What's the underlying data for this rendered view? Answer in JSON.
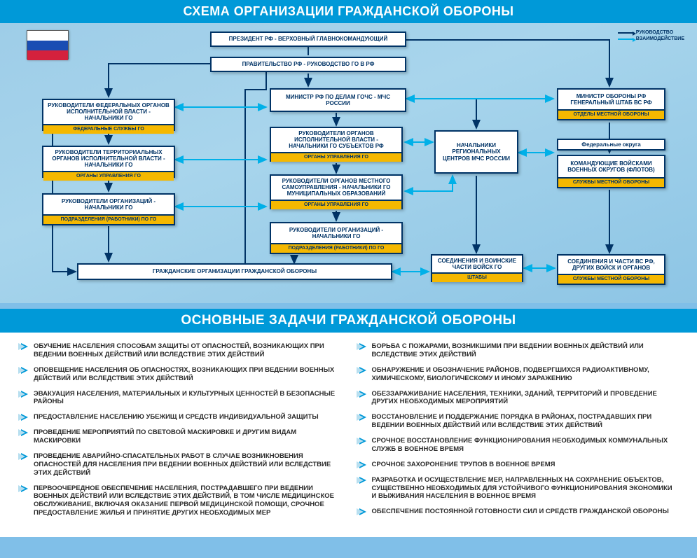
{
  "titles": {
    "diagram": "СХЕМА ОРГАНИЗАЦИИ ГРАЖДАНСКОЙ ОБОРОНЫ",
    "tasks": "ОСНОВНЫЕ ЗАДАЧИ ГРАЖДАНСКОЙ ОБОРОНЫ"
  },
  "legend": {
    "lead": "РУКОВОДСТВО",
    "interact": "ВЗАИМОДЕЙСТВИЕ"
  },
  "nodes": {
    "president": "ПРЕЗИДЕНТ РФ - ВЕРХОВНЫЙ ГЛАВНОКОМАНДУЮЩИЙ",
    "government": "ПРАВИТЕЛЬСТВО РФ - РУКОВОДСТВО  ГО  В  РФ",
    "fedExec": "РУКОВОДИТЕЛИ ФЕДЕРАЛЬНЫХ ОРГАНОВ ИСПОЛНИТЕЛЬНОЙ ВЛАСТИ - НАЧАЛЬНИКИ ГО",
    "fedExecSub": "ФЕДЕРАЛЬНЫЕ СЛУЖБЫ  ГО",
    "terrExec": "РУКОВОДИТЕЛИ  ТЕРРИТОРИАЛЬНЫХ ОРГАНОВ ИСПОЛНИТЕЛЬНОЙ ВЛАСТИ - НАЧАЛЬНИКИ ГО",
    "terrExecSub": "ОРГАНЫ УПРАВЛЕНИЯ ГО",
    "orgHeads": "РУКОВОДИТЕЛИ ОРГАНИЗАЦИЙ - НАЧАЛЬНИКИ ГО",
    "orgHeadsSub": "ПОДРАЗДЕЛЕНИЯ (РАБОТНИКИ) ПО  ГО",
    "civilOrgs": "ГРАЖДАНСКИЕ ОРГАНИЗАЦИИ ГРАЖДАНСКОЙ ОБОРОНЫ",
    "minister": "МИНИСТР РФ ПО ДЕЛАМ ГОЧС - МЧС РОССИИ",
    "execSubjects": "РУКОВОДИТЕЛИ ОРГАНОВ ИСПОЛНИТЕЛЬНОЙ ВЛАСТИ - НАЧАЛЬНИКИ ГО СУБЪЕКТОВ РФ",
    "execSubjectsSub": "ОРГАНЫ УПРАВЛЕНИЯ ГО",
    "localSelf": "РУКОВОДИТЕЛИ ОРГАНОВ МЕСТНОГО САМОУПРАВЛЕНИЯ - НАЧАЛЬНИКИ ГО МУНИЦИПАЛЬНЫХ ОБРАЗОВАНИЙ",
    "localSelfSub": "ОРГАНЫ УПРАВЛЕНИЯ ГО",
    "orgHeads2": "РУКОВОДИТЕЛИ  ОРГАНИЗАЦИЙ - НАЧАЛЬНИКИ ГО",
    "orgHeads2Sub": "ПОДРАЗДЕЛЕНИЯ (РАБОТНИКИ) ПО  ГО",
    "regCenters": "НАЧАЛЬНИКИ РЕГИОНАЛЬНЫХ ЦЕНТРОВ МЧС РОССИИ",
    "troopUnits": "СОЕДИНЕНИЯ И ВОИНСКИЕ ЧАСТИ ВОЙСК ГО",
    "troopUnitsSub": "ШТАБЫ",
    "defMinister": "МИНИСТР ОБОРОНЫ РФ ГЕНЕРАЛЬНЫЙ ШТАБ ВС РФ",
    "defMinisterSub": "ОТДЕЛЫ МЕСТНОЙ ОБОРОНЫ",
    "fedDistricts": "Федеральные  округа",
    "commanders": "КОМАНДУЮЩИЕ ВОЙСКАМИ ВОЕННЫХ ОКРУГОВ (ФЛОТОВ)",
    "commandersSub": "СЛУЖБЫ МЕСТНОЙ ОБОРОНЫ",
    "vsUnits": "СОЕДИНЕНИЯ И ЧАСТИ ВС РФ, ДРУГИХ ВОЙСК И ОРГАНОВ",
    "vsUnitsSub": "СЛУЖБЫ МЕСТНОЙ ОБОРОНЫ"
  },
  "tasks_left": [
    "ОБУЧЕНИЕ НАСЕЛЕНИЯ СПОСОБАМ ЗАЩИТЫ  ОТ ОПАСНОСТЕЙ, ВОЗНИКАЮЩИХ ПРИ ВЕДЕНИИ ВОЕННЫХ ДЕЙСТВИЙ ИЛИ ВСЛЕДСТВИЕ ЭТИХ ДЕЙСТВИЙ",
    "ОПОВЕЩЕНИЕ НАСЕЛЕНИЯ ОБ ОПАСНОСТЯХ, ВОЗНИКАЮЩИХ ПРИ ВЕДЕНИИ ВОЕННЫХ  ДЕЙСТВИЙ ИЛИ ВСЛЕДСТВИЕ ЭТИХ ДЕЙСТВИЙ",
    "ЭВАКУАЦИЯ НАСЕЛЕНИЯ, МАТЕРИАЛЬНЫХ И КУЛЬТУРНЫХ ЦЕННОСТЕЙ В БЕЗОПАСНЫЕ РАЙОНЫ",
    "ПРЕДОСТАВЛЕНИЕ НАСЕЛЕНИЮ УБЕЖИЩ И СРЕДСТВ ИНДИВИДУАЛЬНОЙ ЗАЩИТЫ",
    "ПРОВЕДЕНИЕ МЕРОПРИЯТИЙ ПО СВЕТОВОЙ МАСКИРОВКЕ И ДРУГИМ ВИДАМ МАСКИРОВКИ",
    "ПРОВЕДЕНИЕ АВАРИЙНО-СПАСАТЕЛЬНЫХ РАБОТ В СЛУЧАЕ ВОЗНИКНОВЕНИЯ ОПАСНОСТЕЙ ДЛЯ НАСЕЛЕНИЯ ПРИ ВЕДЕНИИ ВОЕННЫХ ДЕЙСТВИЙ ИЛИ ВСЛЕДСТВИЕ ЭТИХ ДЕЙСТВИЙ",
    "ПЕРВООЧЕРЕДНОЕ ОБЕСПЕЧЕНИЕ НАСЕЛЕНИЯ, ПОСТРАДАВШЕГО ПРИ ВЕДЕНИИ ВОЕННЫХ ДЕЙСТВИЙ ИЛИ ВСЛЕДСТВИЕ ЭТИХ ДЕЙСТВИЙ, В ТОМ ЧИСЛЕ МЕДИЦИНСКОЕ ОБСЛУЖИВАНИЕ, ВКЛЮЧАЯ ОКАЗАНИЕ ПЕРВОЙ МЕДИЦИНСКОЙ ПОМОЩИ, СРОЧНОЕ ПРЕДОСТАВЛЕНИЕ ЖИЛЬЯ И ПРИНЯТИЕ ДРУГИХ НЕОБХОДИМЫХ МЕР"
  ],
  "tasks_right": [
    "БОРЬБА С ПОЖАРАМИ, ВОЗНИКШИМИ ПРИ ВЕДЕНИИ ВОЕННЫХ ДЕЙСТВИЙ ИЛИ ВСЛЕДСТВИЕ ЭТИХ ДЕЙСТВИЙ",
    "ОБНАРУЖЕНИЕ И ОБОЗНАЧЕНИЕ РАЙОНОВ, ПОДВЕРГШИХСЯ РАДИОАКТИВНОМУ, ХИМИЧЕСКОМУ, БИОЛОГИЧЕСКОМУ И ИНОМУ ЗАРАЖЕНИЮ",
    "ОБЕЗЗАРАЖИВАНИЕ НАСЕЛЕНИЯ, ТЕХНИКИ, ЗДАНИЙ, ТЕРРИТОРИЙ И ПРОВЕДЕНИЕ ДРУГИХ НЕОБХОДИМЫХ МЕРОПРИЯТИЙ",
    "ВОССТАНОВЛЕНИЕ И ПОДДЕРЖАНИЕ ПОРЯДКА В РАЙОНАХ, ПОСТРАДАВШИХ ПРИ ВЕДЕНИИ ВОЕННЫХ ДЕЙСТВИЙ ИЛИ ВСЛЕДСТВИЕ ЭТИХ ДЕЙСТВИЙ",
    "СРОЧНОЕ ВОССТАНОВЛЕНИЕ ФУНКЦИОНИРОВАНИЯ НЕОБХОДИМЫХ КОММУНАЛЬНЫХ СЛУЖБ В ВОЕННОЕ ВРЕМЯ",
    "СРОЧНОЕ ЗАХОРОНЕНИЕ ТРУПОВ В ВОЕННОЕ ВРЕМЯ",
    "РАЗРАБОТКА И ОСУЩЕСТВЛЕНИЕ МЕР, НАПРАВЛЕННЫХ НА СОХРАНЕНИЕ ОБЪЕКТОВ, СУЩЕСТВЕННО НЕОБХОДИМЫХ ДЛЯ УСТОЙЧИВОГО ФУНКЦИОНИРОВАНИЯ ЭКОНОМИКИ И ВЫЖИВАНИЯ НАСЕЛЕНИЯ В ВОЕННОЕ ВРЕМЯ",
    "ОБЕСПЕЧЕНИЕ ПОСТОЯННОЙ ГОТОВНОСТИ СИЛ И СРЕДСТВ ГРАЖДАНСКОЙ ОБОРОНЫ"
  ],
  "colors": {
    "titleBg": "#0099d8",
    "nodeBorder": "#003366",
    "nodeSubBg": "#f5b800",
    "pageBg": "#80bfe8",
    "cyan": "#00b0e8"
  }
}
